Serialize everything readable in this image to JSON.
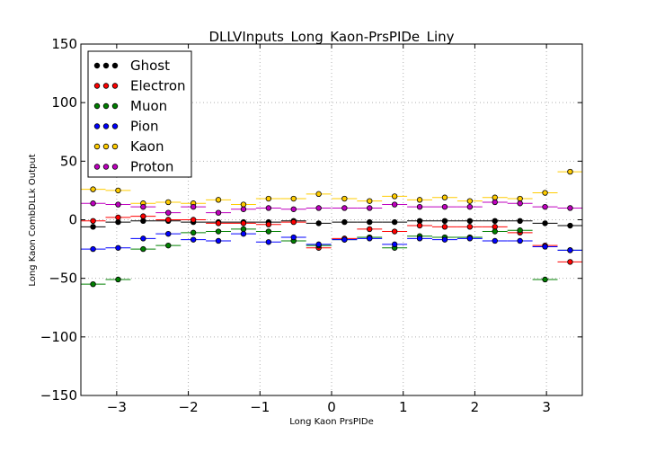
{
  "chart_data": {
    "type": "scatter",
    "title": "DLLVInputs_Long_Kaon-PrsPIDe_Liny",
    "xlabel": "Long Kaon PrsPIDe",
    "ylabel": "Long Kaon CombDLLk Output",
    "xlim": [
      -3.5,
      3.5
    ],
    "ylim": [
      -150,
      150
    ],
    "xticks": [
      -3,
      -2,
      -1,
      0,
      1,
      2,
      3
    ],
    "xtick_labels": [
      "−3",
      "−2",
      "−1",
      "0",
      "1",
      "2",
      "3"
    ],
    "yticks": [
      -150,
      -100,
      -50,
      0,
      50,
      100,
      150
    ],
    "ytick_labels": [
      "−150",
      "−100",
      "−50",
      "0",
      "50",
      "100",
      "150"
    ],
    "grid": true,
    "legend_position": "top-left",
    "bin_centers": [
      -3.33,
      -2.98,
      -2.63,
      -2.28,
      -1.93,
      -1.58,
      -1.23,
      -0.88,
      -0.53,
      -0.18,
      0.18,
      0.53,
      0.88,
      1.23,
      1.58,
      1.93,
      2.28,
      2.63,
      2.98,
      3.33
    ],
    "bin_half_width": 0.175,
    "series": [
      {
        "name": "Ghost",
        "color": "#000000",
        "values": [
          -6,
          -2,
          -1,
          -1,
          -2,
          -2,
          -2,
          -2,
          -1,
          -3,
          -2,
          -2,
          -2,
          -1,
          -1,
          -1,
          -1,
          -1,
          -3,
          -5
        ]
      },
      {
        "name": "Electron",
        "color": "#ff0000",
        "values": [
          -1,
          2,
          3,
          0,
          0,
          -3,
          -3,
          -4,
          -2,
          -24,
          -16,
          -8,
          -10,
          -5,
          -6,
          -6,
          -6,
          -11,
          -22,
          -36
        ]
      },
      {
        "name": "Muon",
        "color": "#008000",
        "values": [
          -55,
          -51,
          -25,
          -22,
          -11,
          -10,
          -8,
          -10,
          -18,
          -22,
          -17,
          -15,
          -24,
          -14,
          -15,
          -15,
          -10,
          -9,
          -51,
          -26
        ]
      },
      {
        "name": "Pion",
        "color": "#0000ff",
        "values": [
          -25,
          -24,
          -16,
          -12,
          -17,
          -18,
          -12,
          -19,
          -15,
          -21,
          -17,
          -16,
          -21,
          -16,
          -17,
          -16,
          -18,
          -18,
          -23,
          -26
        ]
      },
      {
        "name": "Kaon",
        "color": "#ffcc00",
        "values": [
          26,
          25,
          14,
          15,
          14,
          17,
          13,
          18,
          18,
          22,
          18,
          16,
          20,
          17,
          19,
          16,
          19,
          18,
          23,
          41
        ]
      },
      {
        "name": "Proton",
        "color": "#bf00bf",
        "values": [
          14,
          13,
          11,
          6,
          11,
          6,
          9,
          10,
          9,
          10,
          10,
          10,
          13,
          11,
          11,
          11,
          15,
          14,
          11,
          10
        ]
      }
    ]
  }
}
